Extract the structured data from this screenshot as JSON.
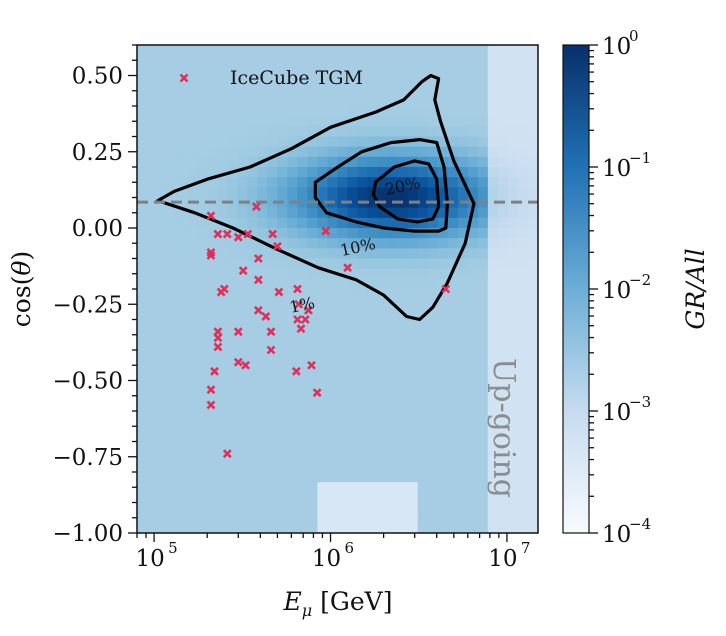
{
  "chart_data": {
    "type": "heatmap",
    "title": "",
    "xlabel": "E_μ [GeV]",
    "ylabel": "cos(θ)",
    "x_scale": "log",
    "xlim": [
      80000,
      15000000
    ],
    "ylim": [
      -1.0,
      0.6
    ],
    "x_ticks": [
      {
        "value": 100000,
        "base": "10",
        "exp": "5"
      },
      {
        "value": 1000000,
        "base": "10",
        "exp": "6"
      },
      {
        "value": 10000000,
        "base": "10",
        "exp": "7"
      }
    ],
    "y_ticks": [
      {
        "value": 0.5,
        "label": "0.50"
      },
      {
        "value": 0.25,
        "label": "0.25"
      },
      {
        "value": 0.0,
        "label": "0.00"
      },
      {
        "value": -0.25,
        "label": "−0.25"
      },
      {
        "value": -0.5,
        "label": "−0.50"
      },
      {
        "value": -0.75,
        "label": "−0.75"
      },
      {
        "value": -1.0,
        "label": "−1.00"
      }
    ],
    "colorbar": {
      "label": "GR/All",
      "scale": "log",
      "range": [
        0.0001,
        1
      ],
      "colormap": "Blues",
      "ticks": [
        {
          "value": 1,
          "base": "10",
          "exp": "0"
        },
        {
          "value": 0.1,
          "base": "10",
          "exp": "−1"
        },
        {
          "value": 0.01,
          "base": "10",
          "exp": "−2"
        },
        {
          "value": 0.001,
          "base": "10",
          "exp": "−3"
        },
        {
          "value": 0.0001,
          "base": "10",
          "exp": "−4"
        }
      ]
    },
    "horizontal_line": {
      "y": 0.085,
      "style": "dashed",
      "color": "#808080"
    },
    "contours": [
      {
        "label": "1%",
        "label_at": [
          700000,
          -0.27
        ],
        "points": [
          [
            105000,
            0.09
          ],
          [
            130000,
            0.12
          ],
          [
            200000,
            0.16
          ],
          [
            350000,
            0.2
          ],
          [
            600000,
            0.26
          ],
          [
            1000000,
            0.33
          ],
          [
            1800000,
            0.38
          ],
          [
            2600000,
            0.42
          ],
          [
            3300000,
            0.48
          ],
          [
            3700000,
            0.5
          ],
          [
            4100000,
            0.49
          ],
          [
            3900000,
            0.42
          ],
          [
            4200000,
            0.35
          ],
          [
            5000000,
            0.22
          ],
          [
            6500000,
            0.08
          ],
          [
            5800000,
            -0.05
          ],
          [
            4600000,
            -0.18
          ],
          [
            3800000,
            -0.26
          ],
          [
            3200000,
            -0.3
          ],
          [
            2700000,
            -0.29
          ],
          [
            2000000,
            -0.22
          ],
          [
            1400000,
            -0.17
          ],
          [
            850000,
            -0.13
          ],
          [
            500000,
            -0.07
          ],
          [
            280000,
            0.0
          ],
          [
            170000,
            0.05
          ],
          [
            105000,
            0.09
          ]
        ]
      },
      {
        "label": "10%",
        "label_at": [
          1450000,
          -0.08
        ],
        "points": [
          [
            820000,
            0.15
          ],
          [
            1100000,
            0.2
          ],
          [
            1500000,
            0.25
          ],
          [
            2200000,
            0.28
          ],
          [
            3200000,
            0.29
          ],
          [
            4000000,
            0.28
          ],
          [
            4400000,
            0.2
          ],
          [
            4600000,
            0.08
          ],
          [
            4500000,
            0.0
          ],
          [
            4100000,
            -0.01
          ],
          [
            3000000,
            -0.01
          ],
          [
            2000000,
            0.0
          ],
          [
            1400000,
            0.02
          ],
          [
            950000,
            0.05
          ],
          [
            820000,
            0.1
          ],
          [
            820000,
            0.15
          ]
        ]
      },
      {
        "label": "20%",
        "label_at": [
          2600000,
          0.12
        ],
        "points": [
          [
            1800000,
            0.15
          ],
          [
            2300000,
            0.2
          ],
          [
            3000000,
            0.22
          ],
          [
            3600000,
            0.21
          ],
          [
            4000000,
            0.16
          ],
          [
            4100000,
            0.07
          ],
          [
            3800000,
            0.03
          ],
          [
            3100000,
            0.02
          ],
          [
            2400000,
            0.03
          ],
          [
            1900000,
            0.07
          ],
          [
            1750000,
            0.11
          ],
          [
            1800000,
            0.15
          ]
        ]
      }
    ],
    "series": [
      {
        "name": "IceCube TGM",
        "marker": "x",
        "color": "#e0305a",
        "points": [
          [
            210000,
            0.04
          ],
          [
            210000,
            -0.08
          ],
          [
            210000,
            -0.09
          ],
          [
            230000,
            -0.02
          ],
          [
            240000,
            -0.21
          ],
          [
            250000,
            -0.2
          ],
          [
            230000,
            -0.34
          ],
          [
            230000,
            -0.36
          ],
          [
            230000,
            -0.39
          ],
          [
            220000,
            -0.47
          ],
          [
            210000,
            -0.53
          ],
          [
            210000,
            -0.58
          ],
          [
            260000,
            -0.74
          ],
          [
            260000,
            -0.02
          ],
          [
            300000,
            -0.03
          ],
          [
            340000,
            -0.02
          ],
          [
            300000,
            -0.34
          ],
          [
            300000,
            -0.44
          ],
          [
            330000,
            -0.45
          ],
          [
            320000,
            -0.14
          ],
          [
            390000,
            -0.1
          ],
          [
            390000,
            -0.17
          ],
          [
            390000,
            -0.27
          ],
          [
            380000,
            0.07
          ],
          [
            430000,
            -0.29
          ],
          [
            460000,
            -0.34
          ],
          [
            460000,
            -0.4
          ],
          [
            470000,
            -0.02
          ],
          [
            500000,
            -0.06
          ],
          [
            510000,
            -0.21
          ],
          [
            650000,
            -0.2
          ],
          [
            660000,
            -0.25
          ],
          [
            650000,
            -0.3
          ],
          [
            680000,
            -0.33
          ],
          [
            640000,
            -0.47
          ],
          [
            750000,
            -0.27
          ],
          [
            720000,
            -0.3
          ],
          [
            780000,
            -0.45
          ],
          [
            840000,
            -0.54
          ],
          [
            940000,
            -0.01
          ],
          [
            1250000,
            -0.13
          ],
          [
            4500000,
            -0.2
          ]
        ]
      }
    ],
    "legend": {
      "position": "top-left",
      "entries": [
        "IceCube TGM"
      ]
    },
    "annotation": {
      "text": "Up-going",
      "rotation": 90,
      "color": "#8c8c8c"
    }
  }
}
